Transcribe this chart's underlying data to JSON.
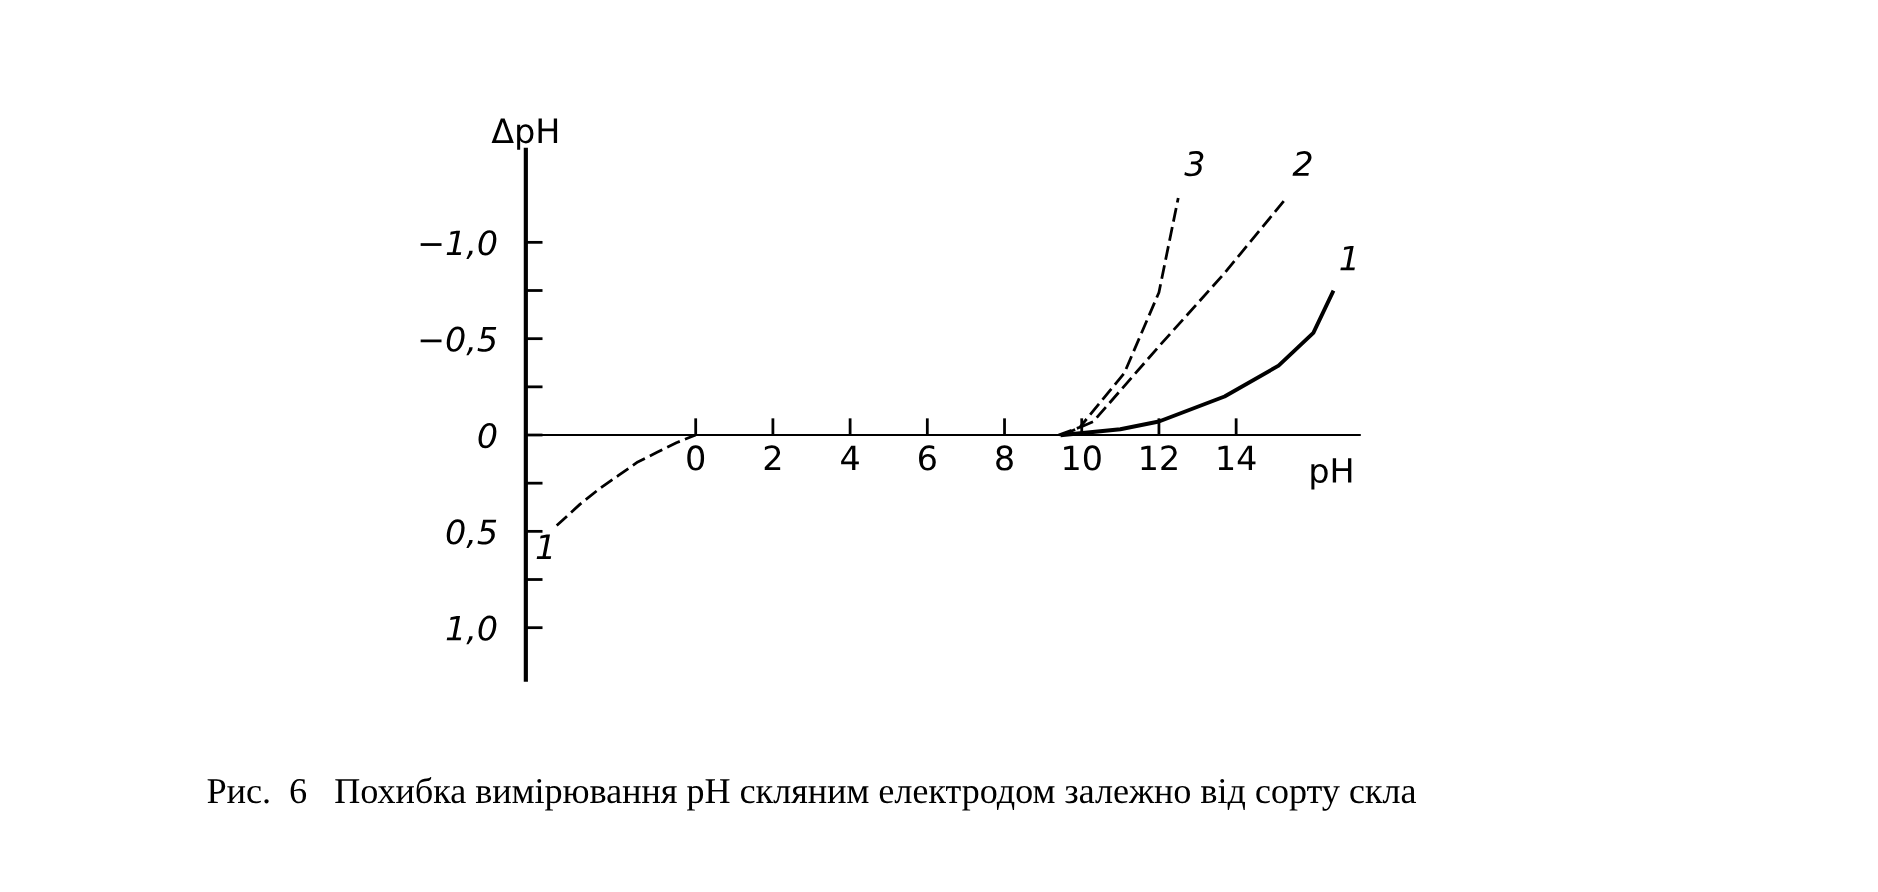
{
  "chart_data": {
    "type": "line",
    "xlabel": "pH",
    "ylabel": "ΔpH",
    "annotations": [
      "Рис.  6   Похибка вимірювання pH скляним електродом залежно від сорту скла"
    ],
    "xlim": [
      -4.4,
      17.2
    ],
    "ylim": [
      1.27,
      -1.48
    ],
    "xticks": [
      0,
      2,
      4,
      6,
      8,
      10,
      12,
      14
    ],
    "yticks": [
      {
        "value": -1.0,
        "label": "−1,0"
      },
      {
        "value": -0.75,
        "label": null
      },
      {
        "value": -0.5,
        "label": "−0,5"
      },
      {
        "value": -0.25,
        "label": null
      },
      0,
      {
        "value": 0.25,
        "label": null
      },
      {
        "value": 0.5,
        "label": "0,5"
      },
      {
        "value": 0.75,
        "label": null
      },
      {
        "value": 1.0,
        "label": "1,0"
      }
    ],
    "grid": false,
    "legend": false,
    "marker": "none",
    "series": [
      {
        "name": "1",
        "color": "#000000",
        "line_style": "dashed",
        "x": [
          -3.6,
          -3,
          -2.5,
          -2,
          -1.5,
          -1,
          -0.5,
          0
        ],
        "values": [
          0.47,
          0.36,
          0.28,
          0.21,
          0.14,
          0.09,
          0.04,
          0
        ]
      },
      {
        "name": "1",
        "color": "#000000",
        "line_style": "solid",
        "x": [
          9.5,
          11,
          12,
          13.7,
          15.1,
          16,
          16.5
        ],
        "values": [
          0,
          -0.03,
          -0.07,
          -0.2,
          -0.36,
          -0.53,
          -0.74
        ]
      },
      {
        "name": "2",
        "color": "#000000",
        "line_style": "dashed",
        "x": [
          9.5,
          10.3,
          12,
          13.7,
          15.3
        ],
        "values": [
          0,
          -0.07,
          -0.46,
          -0.84,
          -1.23
        ]
      },
      {
        "name": "3",
        "color": "#000000",
        "line_style": "dashed",
        "x": [
          9.4,
          9.95,
          11.1,
          12,
          12.5
        ],
        "values": [
          0,
          -0.04,
          -0.32,
          -0.74,
          -1.23
        ]
      }
    ]
  }
}
